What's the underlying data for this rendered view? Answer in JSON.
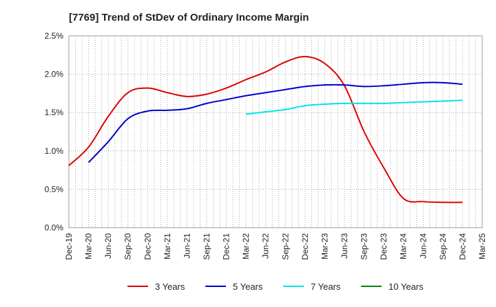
{
  "chart_data": {
    "type": "line",
    "title": "[7769]  Trend of StDev of Ordinary Income Margin",
    "xlabel": "",
    "ylabel": "",
    "x_ticks": [
      "Dec-19",
      "Mar-20",
      "Jun-20",
      "Sep-20",
      "Dec-20",
      "Mar-21",
      "Jun-21",
      "Sep-21",
      "Dec-21",
      "Mar-22",
      "Jun-22",
      "Sep-22",
      "Dec-22",
      "Mar-23",
      "Jun-23",
      "Sep-23",
      "Dec-23",
      "Mar-24",
      "Jun-24",
      "Sep-24",
      "Dec-24",
      "Mar-25"
    ],
    "y_ticks": [
      "0.0%",
      "0.5%",
      "1.0%",
      "1.5%",
      "2.0%",
      "2.5%"
    ],
    "ylim": [
      0,
      2.5
    ],
    "y_unit": "%",
    "grid": true,
    "legend_position": "bottom",
    "series": [
      {
        "name": "3 Years",
        "color": "#dd0000",
        "x": [
          "Dec-19",
          "Mar-20",
          "Jun-20",
          "Sep-20",
          "Dec-20",
          "Mar-21",
          "Jun-21",
          "Sep-21",
          "Dec-21",
          "Mar-22",
          "Jun-22",
          "Sep-22",
          "Dec-22",
          "Mar-23",
          "Jun-23",
          "Sep-23",
          "Dec-23",
          "Mar-24",
          "Jun-24",
          "Sep-24",
          "Dec-24"
        ],
        "values": [
          0.81,
          1.05,
          1.45,
          1.76,
          1.82,
          1.76,
          1.71,
          1.74,
          1.82,
          1.93,
          2.03,
          2.16,
          2.23,
          2.14,
          1.85,
          1.25,
          0.78,
          0.38,
          0.34,
          0.33,
          0.33
        ]
      },
      {
        "name": "5 Years",
        "color": "#0000cc",
        "x": [
          "Mar-20",
          "Jun-20",
          "Sep-20",
          "Dec-20",
          "Mar-21",
          "Jun-21",
          "Sep-21",
          "Dec-21",
          "Mar-22",
          "Jun-22",
          "Sep-22",
          "Dec-22",
          "Mar-23",
          "Jun-23",
          "Sep-23",
          "Dec-23",
          "Mar-24",
          "Jun-24",
          "Sep-24",
          "Dec-24"
        ],
        "values": [
          0.85,
          1.12,
          1.42,
          1.52,
          1.53,
          1.55,
          1.62,
          1.67,
          1.72,
          1.76,
          1.8,
          1.84,
          1.86,
          1.86,
          1.84,
          1.85,
          1.87,
          1.89,
          1.89,
          1.87
        ]
      },
      {
        "name": "7 Years",
        "color": "#00e5e5",
        "x": [
          "Mar-22",
          "Jun-22",
          "Sep-22",
          "Dec-22",
          "Mar-23",
          "Jun-23",
          "Sep-23",
          "Dec-23",
          "Mar-24",
          "Jun-24",
          "Sep-24",
          "Dec-24"
        ],
        "values": [
          1.48,
          1.51,
          1.54,
          1.59,
          1.61,
          1.62,
          1.62,
          1.62,
          1.63,
          1.64,
          1.65,
          1.66
        ]
      },
      {
        "name": "10 Years",
        "color": "#008800",
        "x": [],
        "values": []
      }
    ]
  }
}
